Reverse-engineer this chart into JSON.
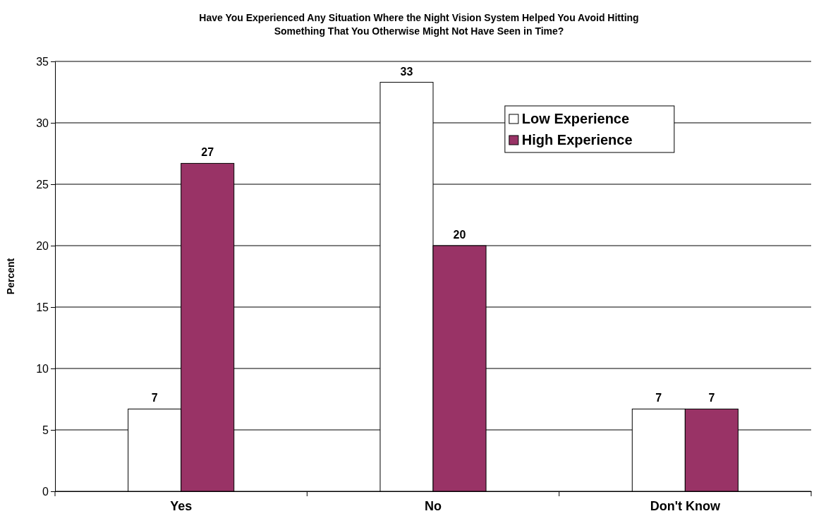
{
  "chart_data": {
    "type": "bar",
    "title": "Have You Experienced Any Situation Where the Night Vision System Helped You Avoid Hitting Something That You Otherwise Might Not Have Seen in Time?",
    "ylabel": "Percent",
    "categories": [
      "Yes",
      "No",
      "Don't Know"
    ],
    "series": [
      {
        "name": "Low Experience",
        "color": "#ffffff",
        "values": [
          6.7,
          33.3,
          6.7
        ],
        "value_labels": [
          "7",
          "33",
          "7"
        ]
      },
      {
        "name": "High Experience",
        "color": "#993366",
        "values": [
          26.7,
          20,
          6.7
        ],
        "value_labels": [
          "27",
          "20",
          "7"
        ]
      }
    ],
    "ylim": [
      0,
      35
    ],
    "yticks": [
      0,
      5,
      10,
      15,
      20,
      25,
      30,
      35
    ],
    "grid": "y",
    "legend": "top right"
  }
}
